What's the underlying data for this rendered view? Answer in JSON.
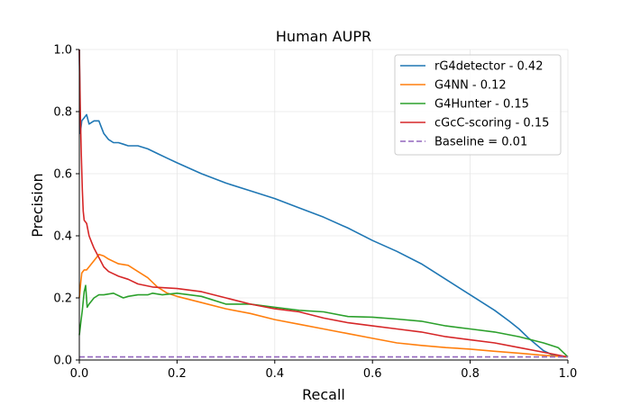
{
  "chart_data": {
    "type": "line",
    "title": "Human AUPR",
    "xlabel": "Recall",
    "ylabel": "Precision",
    "xlim": [
      0,
      1
    ],
    "ylim": [
      0,
      1
    ],
    "xticks": [
      0.0,
      0.2,
      0.4,
      0.6,
      0.8,
      1.0
    ],
    "yticks": [
      0.0,
      0.2,
      0.4,
      0.6,
      0.8,
      1.0
    ],
    "xtick_labels": [
      "0.0",
      "0.2",
      "0.4",
      "0.6",
      "0.8",
      "1.0"
    ],
    "ytick_labels": [
      "0.0",
      "0.2",
      "0.4",
      "0.6",
      "0.8",
      "1.0"
    ],
    "grid": true,
    "legend_position": "top-right",
    "series": [
      {
        "name": "rG4detector - 0.42",
        "color": "#1f77b4",
        "dash": "solid",
        "x": [
          0.0,
          0.002,
          0.005,
          0.01,
          0.015,
          0.02,
          0.03,
          0.04,
          0.045,
          0.05,
          0.06,
          0.07,
          0.08,
          0.09,
          0.1,
          0.12,
          0.14,
          0.16,
          0.18,
          0.2,
          0.25,
          0.3,
          0.35,
          0.4,
          0.45,
          0.5,
          0.55,
          0.6,
          0.65,
          0.7,
          0.75,
          0.8,
          0.85,
          0.88,
          0.9,
          0.92,
          0.95,
          0.97,
          0.99,
          1.0
        ],
        "y": [
          1.0,
          0.73,
          0.77,
          0.78,
          0.79,
          0.76,
          0.77,
          0.77,
          0.75,
          0.73,
          0.71,
          0.7,
          0.7,
          0.695,
          0.69,
          0.69,
          0.68,
          0.665,
          0.65,
          0.635,
          0.6,
          0.57,
          0.545,
          0.52,
          0.49,
          0.46,
          0.425,
          0.385,
          0.35,
          0.31,
          0.26,
          0.21,
          0.16,
          0.125,
          0.1,
          0.07,
          0.03,
          0.015,
          0.01,
          0.01
        ]
      },
      {
        "name": "G4NN - 0.12",
        "color": "#ff7f0e",
        "dash": "solid",
        "x": [
          0.0,
          0.003,
          0.005,
          0.01,
          0.015,
          0.02,
          0.03,
          0.04,
          0.05,
          0.06,
          0.08,
          0.1,
          0.12,
          0.14,
          0.16,
          0.18,
          0.2,
          0.25,
          0.3,
          0.35,
          0.4,
          0.45,
          0.5,
          0.55,
          0.6,
          0.65,
          0.7,
          0.75,
          0.8,
          0.85,
          0.9,
          0.95,
          1.0
        ],
        "y": [
          0.2,
          0.25,
          0.28,
          0.29,
          0.29,
          0.3,
          0.32,
          0.34,
          0.335,
          0.325,
          0.31,
          0.305,
          0.285,
          0.265,
          0.235,
          0.215,
          0.205,
          0.185,
          0.165,
          0.15,
          0.13,
          0.115,
          0.1,
          0.085,
          0.07,
          0.055,
          0.047,
          0.04,
          0.035,
          0.028,
          0.022,
          0.015,
          0.01
        ]
      },
      {
        "name": "G4Hunter - 0.15",
        "color": "#2ca02c",
        "dash": "solid",
        "x": [
          0.0,
          0.003,
          0.006,
          0.01,
          0.013,
          0.016,
          0.02,
          0.03,
          0.04,
          0.05,
          0.07,
          0.09,
          0.1,
          0.12,
          0.14,
          0.15,
          0.17,
          0.2,
          0.25,
          0.3,
          0.35,
          0.4,
          0.45,
          0.5,
          0.55,
          0.6,
          0.65,
          0.7,
          0.75,
          0.8,
          0.85,
          0.9,
          0.95,
          0.98,
          1.0
        ],
        "y": [
          0.08,
          0.12,
          0.16,
          0.22,
          0.24,
          0.17,
          0.18,
          0.2,
          0.21,
          0.21,
          0.215,
          0.2,
          0.205,
          0.21,
          0.21,
          0.215,
          0.21,
          0.215,
          0.205,
          0.18,
          0.18,
          0.17,
          0.16,
          0.155,
          0.14,
          0.138,
          0.132,
          0.125,
          0.11,
          0.1,
          0.09,
          0.075,
          0.055,
          0.04,
          0.01
        ]
      },
      {
        "name": "cGcC-scoring - 0.15",
        "color": "#d62728",
        "dash": "solid",
        "x": [
          0.0,
          0.002,
          0.004,
          0.006,
          0.008,
          0.01,
          0.015,
          0.02,
          0.025,
          0.03,
          0.04,
          0.05,
          0.06,
          0.08,
          0.1,
          0.12,
          0.15,
          0.2,
          0.25,
          0.3,
          0.35,
          0.4,
          0.45,
          0.5,
          0.55,
          0.6,
          0.65,
          0.7,
          0.75,
          0.8,
          0.85,
          0.9,
          0.95,
          1.0
        ],
        "y": [
          1.0,
          0.8,
          0.66,
          0.55,
          0.48,
          0.45,
          0.44,
          0.4,
          0.38,
          0.36,
          0.33,
          0.3,
          0.285,
          0.27,
          0.26,
          0.245,
          0.235,
          0.23,
          0.22,
          0.2,
          0.18,
          0.165,
          0.155,
          0.135,
          0.12,
          0.11,
          0.1,
          0.09,
          0.075,
          0.065,
          0.055,
          0.04,
          0.025,
          0.01
        ]
      },
      {
        "name": "Baseline = 0.01",
        "color": "#9467bd",
        "dash": "dashed",
        "x": [
          0.0,
          1.0
        ],
        "y": [
          0.01,
          0.01
        ]
      }
    ]
  }
}
